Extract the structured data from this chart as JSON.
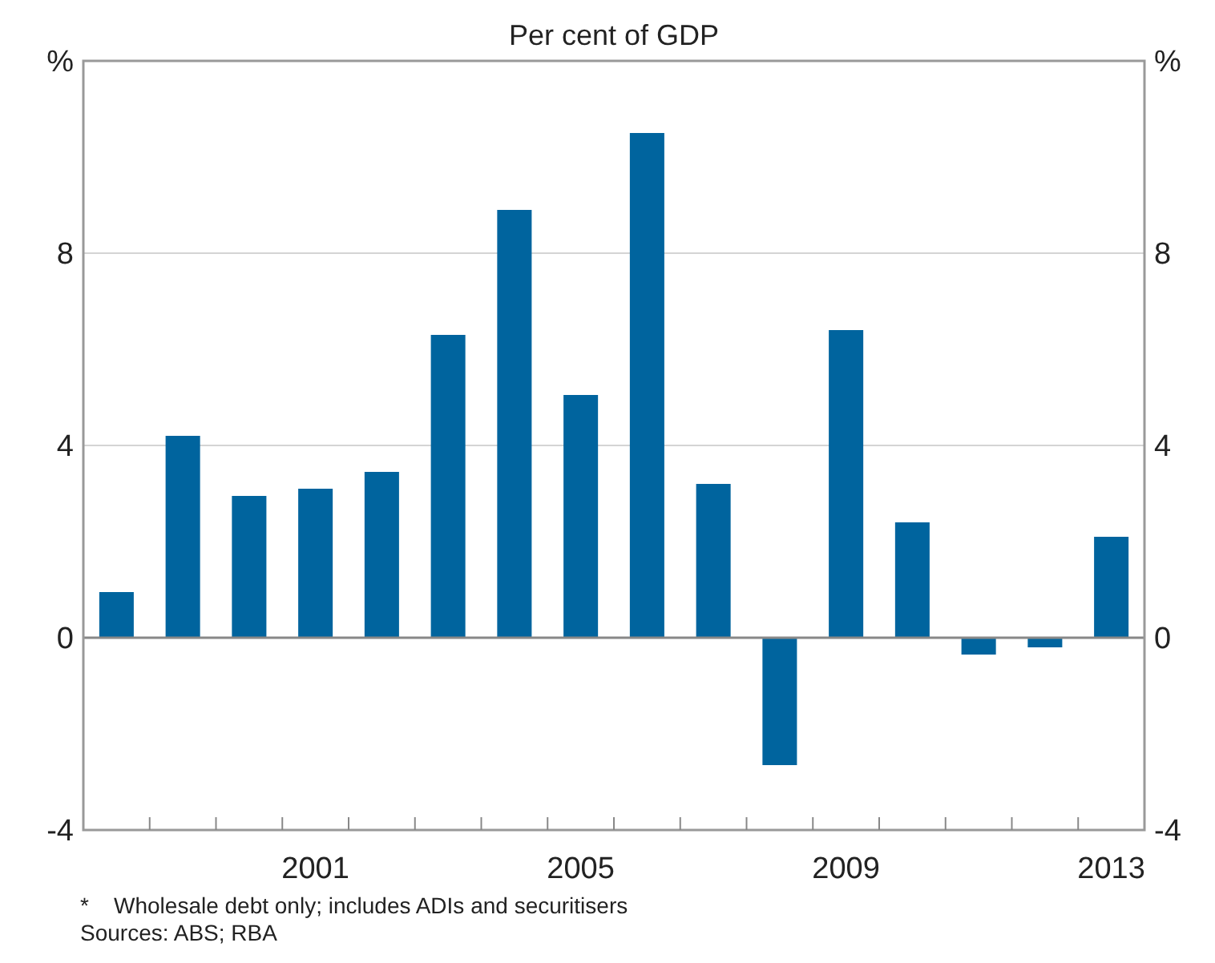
{
  "chart_data": {
    "type": "bar",
    "title": "Per cent of GDP",
    "categories": [
      null,
      null,
      null,
      "2001",
      null,
      null,
      null,
      "2005",
      null,
      null,
      null,
      "2009",
      null,
      null,
      null,
      "2013"
    ],
    "values": [
      0.95,
      4.2,
      2.95,
      3.1,
      3.45,
      6.3,
      8.9,
      5.05,
      10.5,
      3.2,
      -2.65,
      6.4,
      2.4,
      -0.35,
      -0.2,
      2.1
    ],
    "color": "#00649e",
    "ylim": [
      -4,
      12
    ],
    "yticks": [
      -4,
      0,
      4,
      8,
      {
        "value": 12,
        "label": "%"
      }
    ],
    "y2lim": [
      -4,
      12
    ],
    "y2ticks": [
      -4,
      0,
      4,
      8,
      {
        "value": 12,
        "label": "%"
      }
    ],
    "grid": "y",
    "annotations": [
      "*    Wholesale debt only; includes ADIs and securitisers",
      "Sources: ABS; RBA"
    ]
  }
}
